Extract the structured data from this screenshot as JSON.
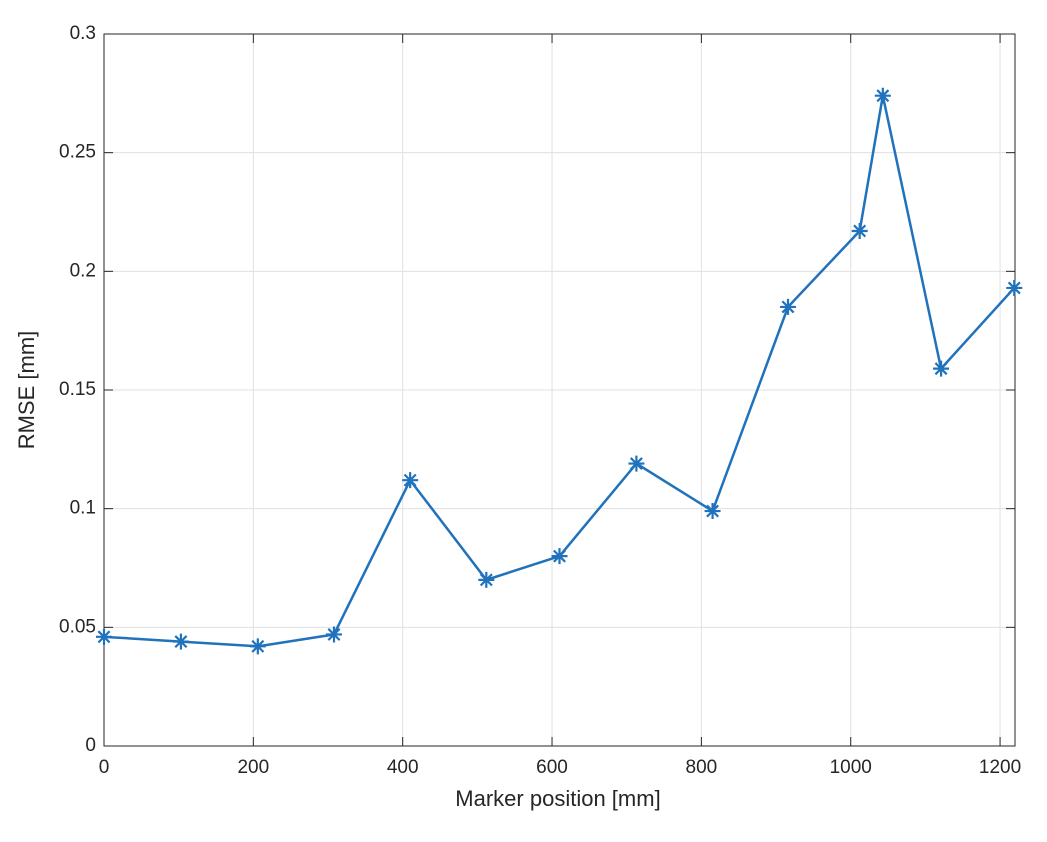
{
  "chart_data": {
    "type": "line",
    "xlabel": "Marker position [mm]",
    "ylabel": "RMSE [mm]",
    "x": [
      0,
      103,
      206,
      308,
      410,
      512,
      610,
      713,
      815,
      916,
      1012,
      1043,
      1121,
      1219
    ],
    "values": [
      0.046,
      0.044,
      0.042,
      0.047,
      0.112,
      0.07,
      0.08,
      0.119,
      0.099,
      0.185,
      0.217,
      0.274,
      0.159,
      0.193
    ],
    "color": "#1f72bb",
    "marker": "asterisk",
    "xlim": [
      0,
      1220
    ],
    "xticks": [
      0,
      200,
      400,
      600,
      800,
      1000,
      1200
    ],
    "ylim": [
      0,
      0.3
    ],
    "yticks": [
      0,
      0.05,
      0.1,
      0.15,
      0.2,
      0.25,
      0.3
    ],
    "grid": true
  }
}
